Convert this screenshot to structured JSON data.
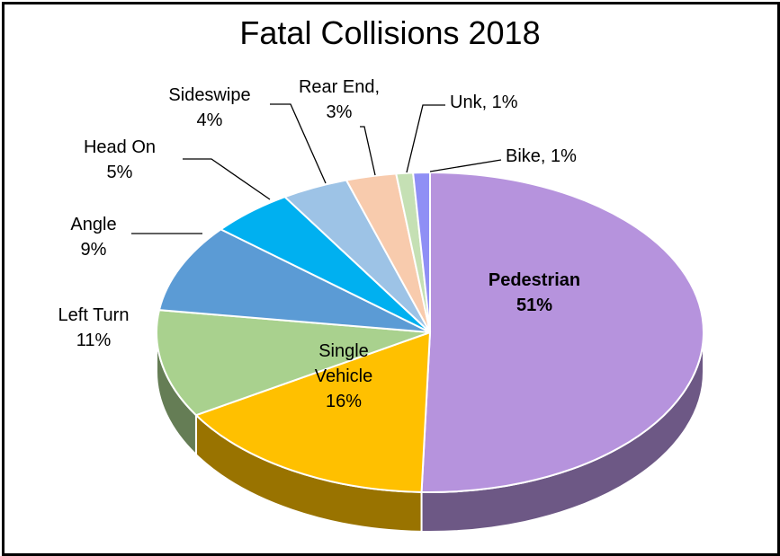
{
  "chart_data": {
    "type": "pie",
    "title": "Fatal Collisions 2018",
    "slices": [
      {
        "name": "Pedestrian",
        "value": 51,
        "label_lines": [
          "Pedestrian",
          "51%"
        ],
        "color": "#B693DD",
        "bold": true
      },
      {
        "name": "Single Vehicle",
        "value": 16,
        "label_lines": [
          "Single",
          "Vehicle",
          "16%"
        ],
        "color": "#FFC000",
        "bold": false
      },
      {
        "name": "Left Turn",
        "value": 11,
        "label_lines": [
          "Left Turn",
          "11%"
        ],
        "color": "#A9D18E",
        "bold": false
      },
      {
        "name": "Angle",
        "value": 9,
        "label_lines": [
          "Angle",
          "9%"
        ],
        "color": "#5B9BD5",
        "bold": false
      },
      {
        "name": "Head On",
        "value": 5,
        "label_lines": [
          "Head On",
          "5%"
        ],
        "color": "#00B0F0",
        "bold": false
      },
      {
        "name": "Sideswipe",
        "value": 4,
        "label_lines": [
          "Sideswipe",
          "4%"
        ],
        "color": "#9DC3E6",
        "bold": false
      },
      {
        "name": "Rear End",
        "value": 3,
        "label_lines": [
          "Rear End,",
          "3%"
        ],
        "color": "#F8CBAD",
        "bold": false
      },
      {
        "name": "Unk",
        "value": 1,
        "label_lines": [
          "Unk, 1%"
        ],
        "color": "#C5E0B4",
        "bold": false
      },
      {
        "name": "Bike",
        "value": 1,
        "label_lines": [
          "Bike, 1%"
        ],
        "color": "#8F8FF5",
        "bold": false
      }
    ]
  }
}
